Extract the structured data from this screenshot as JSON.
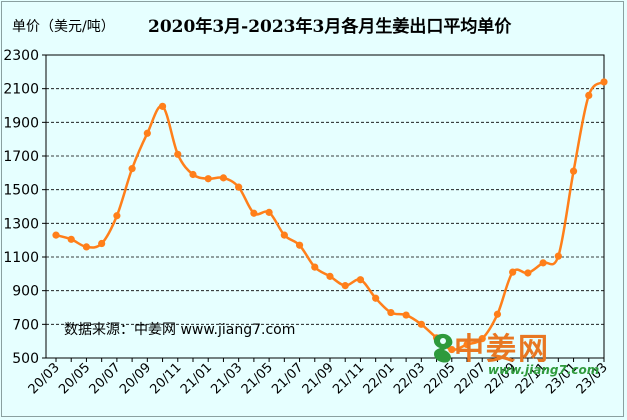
{
  "unit_label": "单价（美元/吨）",
  "title": "2020年3月-2023年3月各月生姜出口平均单价",
  "source": "数据来源：中姜网 www.jiang7.com",
  "logo": {
    "main": "中姜网",
    "url": "www.jiang7.com"
  },
  "colors": {
    "background": "#e6ffff",
    "line": "#ff7f1a",
    "grid": "#000000",
    "logo_orange": "#e87722",
    "logo_green": "#2e9a3c"
  },
  "chart_data": {
    "type": "line",
    "title": "2020年3月-2023年3月各月生姜出口平均单价",
    "ylabel": "单价（美元/吨）",
    "xlabel": "",
    "ylim": [
      500,
      2300
    ],
    "yticks": [
      500,
      700,
      900,
      1100,
      1300,
      1500,
      1700,
      1900,
      2100,
      2300
    ],
    "grid": "horizontal dashed",
    "x_tick_labels": [
      "20/03",
      "20/05",
      "20/07",
      "20/09",
      "20/11",
      "21/01",
      "21/03",
      "21/05",
      "21/07",
      "21/09",
      "21/11",
      "22/01",
      "22/03",
      "22/05",
      "22/07",
      "22/09",
      "22/11",
      "23/01",
      "23/03"
    ],
    "x": [
      "20/03",
      "20/04",
      "20/05",
      "20/06",
      "20/07",
      "20/08",
      "20/09",
      "20/10",
      "20/11",
      "20/12",
      "21/01",
      "21/02",
      "21/03",
      "21/04",
      "21/05",
      "21/06",
      "21/07",
      "21/08",
      "21/09",
      "21/10",
      "21/11",
      "21/12",
      "22/01",
      "22/02",
      "22/03",
      "22/04",
      "22/05",
      "22/06",
      "22/07",
      "22/08",
      "22/09",
      "22/10",
      "22/11",
      "22/12",
      "23/01",
      "23/02",
      "23/03"
    ],
    "series": [
      {
        "values": [
          1230,
          1205,
          1160,
          1180,
          1345,
          1625,
          1835,
          1995,
          1710,
          1590,
          1565,
          1570,
          1515,
          1360,
          1365,
          1230,
          1170,
          1040,
          985,
          930,
          965,
          855,
          770,
          755,
          700,
          620,
          550,
          580,
          615,
          760,
          1010,
          1005,
          1065,
          1105,
          1610,
          2060,
          2140
        ]
      }
    ]
  }
}
